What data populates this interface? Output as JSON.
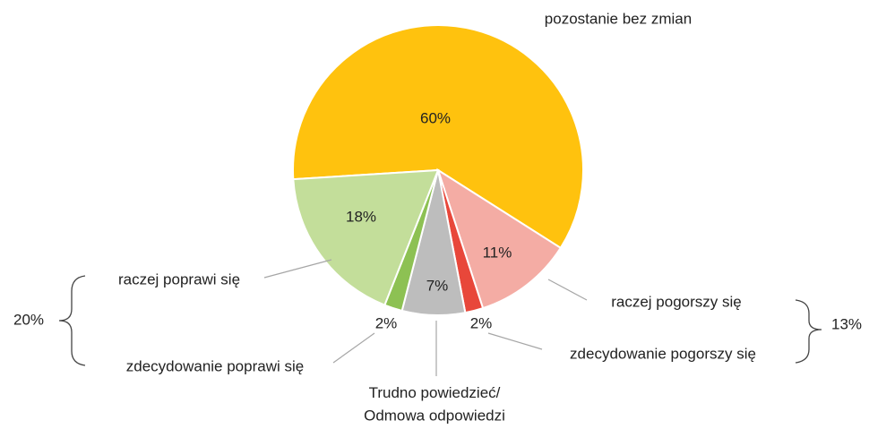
{
  "chart_data": {
    "type": "pie",
    "categories": [
      "pozostanie bez zmian",
      "raczej pogorszy się",
      "zdecydowanie pogorszy się",
      "Trudno powiedzieć/\nOdmowa odpowiedzi",
      "zdecydowanie poprawi się",
      "raczej poprawi się"
    ],
    "values": [
      60,
      11,
      2,
      7,
      2,
      18
    ],
    "value_labels": [
      "60%",
      "11%",
      "2%",
      "7%",
      "2%",
      "18%"
    ],
    "colors": [
      "#FFC20E",
      "#F4ACA4",
      "#E8473A",
      "#BDBDBD",
      "#8DC153",
      "#C3DE9A"
    ],
    "groups": [
      {
        "value": 20,
        "label": "20%"
      },
      {
        "value": 13,
        "label": "13%"
      }
    ]
  }
}
